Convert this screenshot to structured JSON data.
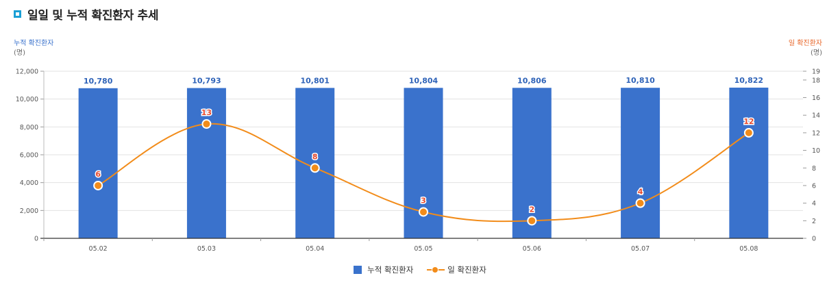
{
  "title": "일일 및 누적 확진환자 추세",
  "colors": {
    "bar": "#3a72cc",
    "line": "#f28c1a",
    "left_axis_title": "#3a72cc",
    "right_axis_title": "#e8672a",
    "bar_label": "#2f63b8",
    "line_label": "#e64a2e"
  },
  "chart_data": {
    "type": "bar",
    "categories": [
      "05.02",
      "05.03",
      "05.04",
      "05.05",
      "05.06",
      "05.07",
      "05.08"
    ],
    "series": [
      {
        "name": "누적 확진환자",
        "type": "bar",
        "axis": "left",
        "values": [
          10780,
          10793,
          10801,
          10804,
          10806,
          10810,
          10822
        ],
        "labels": [
          "10,780",
          "10,793",
          "10,801",
          "10,804",
          "10,806",
          "10,810",
          "10,822"
        ]
      },
      {
        "name": "일 확진환자",
        "type": "line",
        "axis": "right",
        "values": [
          6,
          13,
          8,
          3,
          2,
          4,
          12
        ],
        "labels": [
          "6",
          "13",
          "8",
          "3",
          "2",
          "4",
          "12"
        ]
      }
    ],
    "left_axis": {
      "title": "누적 확진환자",
      "unit": "(명)",
      "ylim": [
        0,
        12000
      ],
      "ticks": [
        "0",
        "2,000",
        "4,000",
        "6,000",
        "8,000",
        "10,000",
        "12,000"
      ]
    },
    "right_axis": {
      "title": "일 확진환자",
      "unit": "(명)",
      "ylim": [
        0,
        19
      ],
      "ticks": [
        "0",
        "2",
        "4",
        "6",
        "8",
        "10",
        "12",
        "14",
        "16",
        "18",
        "19"
      ]
    },
    "grid": true,
    "legend": "bottom-center"
  }
}
